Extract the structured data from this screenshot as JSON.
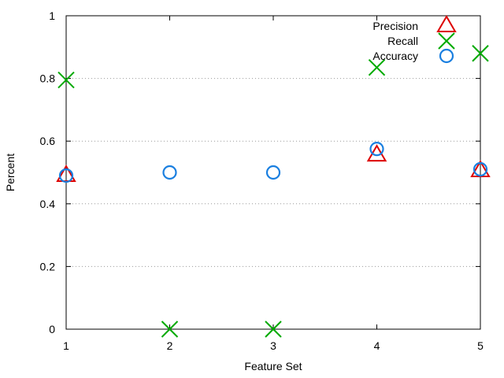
{
  "chart_data": {
    "type": "scatter",
    "xlabel": "Feature Set",
    "ylabel": "Percent",
    "xlim": [
      1,
      5
    ],
    "ylim": [
      0,
      1
    ],
    "xticks": [
      "1",
      "2",
      "3",
      "4",
      "5"
    ],
    "yticks": [
      "0",
      "0.2",
      "0.4",
      "0.6",
      "0.8",
      "1"
    ],
    "grid": "horizontal dotted",
    "legend_position": "top-right",
    "series": [
      {
        "name": "Precision",
        "marker": "triangle",
        "color": "#dd0000",
        "points": [
          [
            1,
            0.49
          ],
          [
            4,
            0.555
          ],
          [
            5,
            0.505
          ]
        ]
      },
      {
        "name": "Recall",
        "marker": "cross",
        "color": "#00aa00",
        "points": [
          [
            1,
            0.795
          ],
          [
            2,
            0.0
          ],
          [
            3,
            0.0
          ],
          [
            4,
            0.835
          ],
          [
            5,
            0.88
          ]
        ]
      },
      {
        "name": "Accuracy",
        "marker": "circle",
        "color": "#1a7fe0",
        "points": [
          [
            1,
            0.49
          ],
          [
            2,
            0.5
          ],
          [
            3,
            0.5
          ],
          [
            4,
            0.575
          ],
          [
            5,
            0.51
          ]
        ]
      }
    ]
  }
}
